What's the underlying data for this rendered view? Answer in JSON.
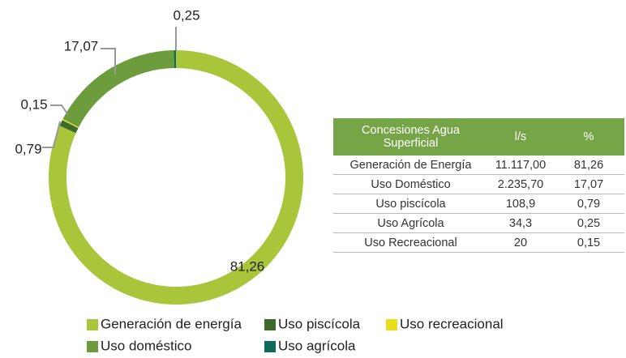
{
  "chart_data": {
    "type": "pie",
    "donut": true,
    "categories": [
      "Generación de energía",
      "Uso piscícola",
      "Uso recreacional",
      "Uso doméstico",
      "Uso agrícola"
    ],
    "values": [
      81.26,
      0.79,
      0.15,
      17.07,
      0.25
    ],
    "value_labels": [
      "81,26",
      "0,79",
      "0,15",
      "17,07",
      "0,25"
    ],
    "colors": [
      "#a9c63b",
      "#3e6b2b",
      "#e6de1f",
      "#6c9c3b",
      "#0e6a5a"
    ],
    "legend": "bottom"
  },
  "table": {
    "header": [
      "Concesiones Agua Superficial",
      "l/s",
      "%"
    ],
    "rows": [
      [
        "Generación de Energía",
        "11.117,00",
        "81,26"
      ],
      [
        "Uso Doméstico",
        "2.235,70",
        "17,07"
      ],
      [
        "Uso piscícola",
        "108,9",
        "0,79"
      ],
      [
        "Uso Agrícola",
        "34,3",
        "0,25"
      ],
      [
        "Uso Recreacional",
        "20",
        "0,15"
      ]
    ]
  }
}
